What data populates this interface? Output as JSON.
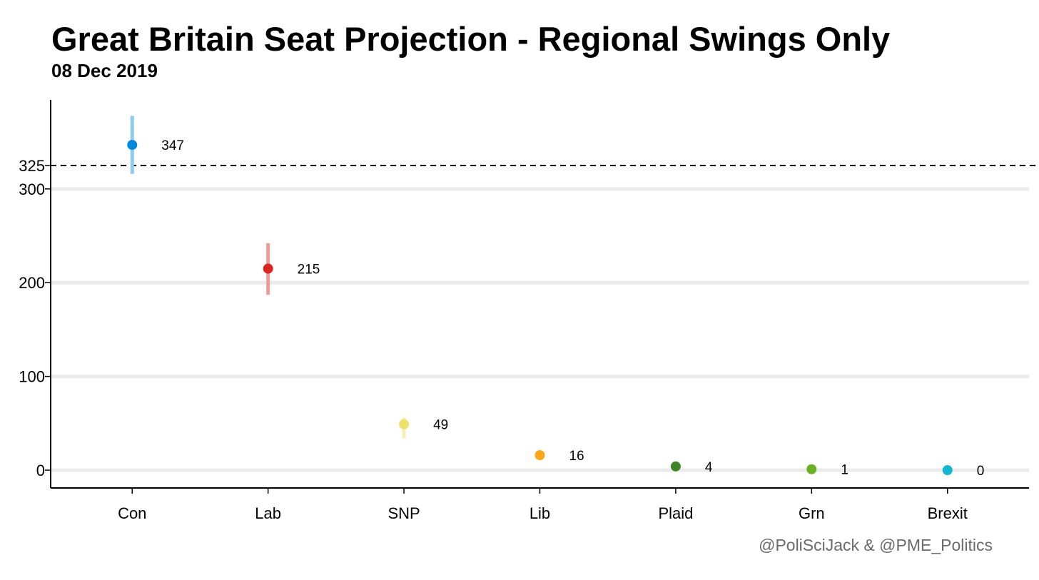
{
  "chart_data": {
    "type": "scatter",
    "title": "Great Britain Seat Projection - Regional Swings Only",
    "subtitle": "08 Dec 2019",
    "caption": "@PoliSciJack & @PME_Politics",
    "categories": [
      "Con",
      "Lab",
      "SNP",
      "Lib",
      "Plaid",
      "Grn",
      "Brexit"
    ],
    "values": [
      347,
      215,
      49,
      16,
      4,
      1,
      0
    ],
    "labels": [
      "347",
      "215",
      "49",
      "16",
      "4",
      "1",
      "0"
    ],
    "intervals": [
      [
        316,
        378
      ],
      [
        187,
        242
      ],
      [
        34,
        56
      ],
      [
        14,
        18
      ],
      [
        3,
        5
      ],
      [
        0,
        2
      ],
      [
        0,
        0
      ]
    ],
    "colors": [
      "#0087DC",
      "#DC241F",
      "#EDE26C",
      "#FAA61A",
      "#3F8428",
      "#6AB023",
      "#12B6CF"
    ],
    "interval_colors": [
      "#8ECBEE",
      "#EC9C99",
      "#F7F0B3",
      "#FCD08F",
      "#9FC294",
      "#B5D891",
      "#88DBE8"
    ],
    "y_ticks": [
      0,
      100,
      200,
      300
    ],
    "y_tick_labels": [
      "0",
      "100",
      "200",
      "300"
    ],
    "reference_line": {
      "value": 325,
      "label": "325",
      "style": "dashed"
    },
    "ylim": [
      -19,
      395
    ],
    "xlabel": "",
    "ylabel": "",
    "grid": "horizontal major",
    "legend": "none"
  }
}
